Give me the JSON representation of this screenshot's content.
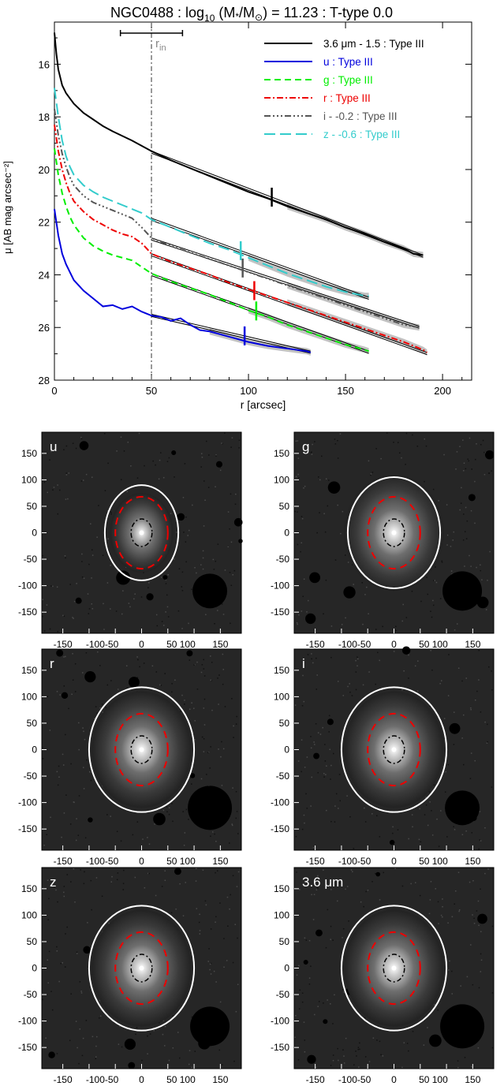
{
  "title": "NGC0488 : log10 (M*/M⊙) = 11.23 : T-type 0.0",
  "title_parts": {
    "prefix": "NGC0488 : log",
    "sub": "10",
    "mid": " (M",
    "star": "*",
    "slash": "/M",
    "sun": "⊙",
    "suffix": ") = 11.23 : T-type 0.0"
  },
  "colors": {
    "black": "#000000",
    "u": "#0000dd",
    "g": "#00ee00",
    "r": "#ee0000",
    "i": "#555555",
    "z": "#33cccc",
    "shade": "#bbbbbb"
  },
  "chart_data": [
    {
      "type": "line",
      "xlabel": "r [arcsec]",
      "ylabel": "μ [AB mag arcsec⁻²]",
      "xlim": [
        0,
        215
      ],
      "ylim": [
        28,
        14.4
      ],
      "y_inverted": true,
      "xticks": [
        0,
        50,
        100,
        150,
        200
      ],
      "yticks": [
        16,
        18,
        20,
        22,
        24,
        26,
        28
      ],
      "vline": {
        "x": 50,
        "label": "r",
        "label_sub": "in",
        "errorbar": [
          34,
          66
        ]
      },
      "legend_position": "top-right",
      "series": [
        {
          "name": "3.6 μm - 1.5 : Type III",
          "key": "black",
          "dash": "",
          "x": [
            0,
            1,
            2,
            4,
            6,
            8,
            10,
            15,
            20,
            25,
            30,
            40,
            50,
            60,
            70,
            80,
            90,
            100,
            110,
            120,
            130,
            140,
            150,
            160,
            170,
            180,
            185,
            190
          ],
          "y": [
            14.8,
            15.6,
            16.2,
            16.8,
            17.1,
            17.3,
            17.5,
            17.85,
            18.1,
            18.35,
            18.55,
            18.9,
            19.3,
            19.65,
            19.95,
            20.25,
            20.55,
            20.85,
            21.1,
            21.4,
            21.65,
            21.9,
            22.2,
            22.45,
            22.75,
            23.0,
            23.2,
            23.25
          ],
          "fit_x": [
            50,
            190
          ],
          "fit_y": [
            19.3,
            23.25
          ],
          "break": 112
        },
        {
          "name": "u : Type III",
          "key": "u",
          "dash": "",
          "x": [
            0,
            2,
            4,
            6,
            8,
            10,
            15,
            20,
            25,
            30,
            35,
            40,
            45,
            50,
            55,
            60,
            65,
            70,
            75,
            80,
            90,
            100,
            110,
            120,
            130,
            132
          ],
          "y": [
            21.5,
            22.5,
            23.2,
            23.6,
            23.9,
            24.2,
            24.6,
            24.9,
            25.2,
            25.15,
            25.3,
            25.2,
            25.4,
            25.55,
            25.6,
            25.75,
            25.65,
            25.9,
            26.1,
            26.15,
            26.35,
            26.55,
            26.7,
            26.8,
            26.9,
            26.95
          ],
          "fit_x": [
            50,
            132
          ],
          "fit_y": [
            25.5,
            26.9
          ],
          "break": 98
        },
        {
          "name": "g : Type III",
          "key": "g",
          "dash": "8 5",
          "x": [
            0,
            2,
            4,
            6,
            8,
            10,
            15,
            20,
            25,
            30,
            35,
            40,
            45,
            50,
            60,
            70,
            80,
            90,
            100,
            110,
            120,
            130,
            140,
            150,
            160,
            162
          ],
          "y": [
            19.2,
            20.2,
            20.9,
            21.4,
            21.8,
            22.1,
            22.6,
            22.9,
            23.1,
            23.25,
            23.35,
            23.45,
            23.7,
            23.95,
            24.25,
            24.5,
            24.75,
            25.05,
            25.35,
            25.6,
            25.9,
            26.15,
            26.4,
            26.65,
            26.85,
            26.9
          ],
          "fit_x": [
            50,
            162
          ],
          "fit_y": [
            23.95,
            26.9
          ],
          "break": 104
        },
        {
          "name": "r : Type III",
          "key": "r",
          "dash": "8 3 2 3",
          "x": [
            0,
            2,
            4,
            6,
            8,
            10,
            15,
            20,
            25,
            30,
            35,
            40,
            45,
            50,
            60,
            70,
            80,
            90,
            100,
            110,
            120,
            130,
            140,
            150,
            160,
            170,
            180,
            190,
            192
          ],
          "y": [
            18.3,
            19.3,
            20.0,
            20.5,
            20.9,
            21.2,
            21.6,
            21.9,
            22.1,
            22.3,
            22.45,
            22.55,
            22.8,
            23.2,
            23.5,
            23.75,
            24.0,
            24.3,
            24.55,
            24.8,
            25.05,
            25.3,
            25.55,
            25.8,
            26.05,
            26.3,
            26.55,
            26.85,
            26.95
          ],
          "fit_x": [
            50,
            192
          ],
          "fit_y": [
            23.2,
            26.95
          ],
          "break": 103
        },
        {
          "name": "i - -0.2 : Type III",
          "key": "i",
          "dash": "8 3 2 3 2 3 2 3",
          "x": [
            0,
            2,
            4,
            6,
            8,
            10,
            15,
            20,
            25,
            30,
            35,
            40,
            45,
            50,
            60,
            70,
            80,
            90,
            100,
            110,
            120,
            130,
            140,
            150,
            160,
            170,
            180,
            188
          ],
          "y": [
            17.7,
            18.7,
            19.4,
            19.9,
            20.3,
            20.6,
            21.0,
            21.25,
            21.4,
            21.55,
            21.7,
            21.85,
            22.2,
            22.6,
            22.9,
            23.15,
            23.4,
            23.65,
            23.9,
            24.15,
            24.4,
            24.65,
            24.9,
            25.15,
            25.4,
            25.65,
            25.9,
            26.0
          ],
          "fit_x": [
            50,
            188
          ],
          "fit_y": [
            22.6,
            25.95
          ],
          "break": 97
        },
        {
          "name": "z - -0.6 : Type III",
          "key": "z",
          "dash": "14 6",
          "x": [
            0,
            2,
            4,
            6,
            8,
            10,
            15,
            20,
            25,
            30,
            35,
            40,
            45,
            50,
            60,
            70,
            80,
            90,
            100,
            110,
            120,
            130,
            140,
            150,
            160,
            162
          ],
          "y": [
            16.9,
            18.0,
            18.9,
            19.5,
            19.9,
            20.2,
            20.6,
            20.85,
            21.05,
            21.2,
            21.35,
            21.5,
            21.65,
            21.9,
            22.2,
            22.5,
            22.8,
            23.05,
            23.35,
            23.65,
            23.95,
            24.2,
            24.45,
            24.65,
            24.8,
            24.8
          ],
          "fit_x": [
            50,
            162
          ],
          "fit_y": [
            21.85,
            24.85
          ],
          "break": 96
        }
      ]
    },
    {
      "type": "image-grid",
      "xticks": [
        -150,
        -100,
        -50,
        0,
        50,
        100,
        150
      ],
      "xtick_labels": [
        "-150",
        "-100-50",
        "0",
        "50 100",
        "150"
      ],
      "yticks": [
        150,
        100,
        50,
        0,
        -50,
        -100,
        -150
      ],
      "panels": [
        {
          "label": "u"
        },
        {
          "label": "g"
        },
        {
          "label": "r"
        },
        {
          "label": "i"
        },
        {
          "label": "z"
        },
        {
          "label": "3.6 μm"
        }
      ]
    }
  ]
}
